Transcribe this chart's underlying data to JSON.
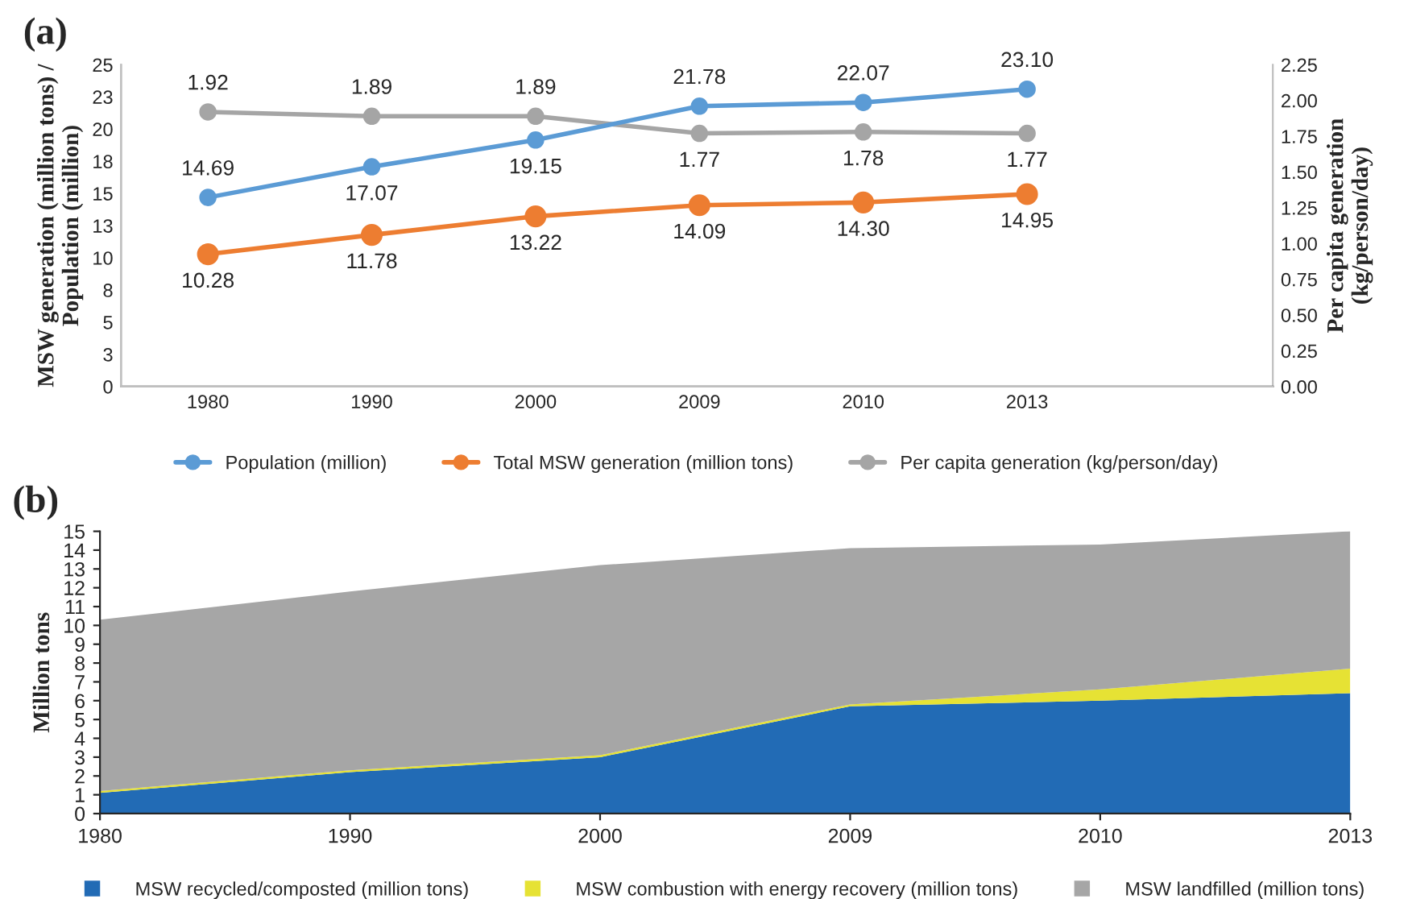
{
  "chart_data": [
    {
      "type": "line",
      "title": "(a)",
      "categories": [
        "1980",
        "1990",
        "2000",
        "2009",
        "2010",
        "2013"
      ],
      "ylabel": "MSW generation (million tons) /\nPopulation (million)",
      "y2label": "Per capita generation\n(kg/person/day)",
      "ylim": [
        0,
        25
      ],
      "yticks": [
        0,
        {
          "value": 2.5,
          "label": "3"
        },
        5,
        {
          "value": 7.5,
          "label": "8"
        },
        10,
        {
          "value": 12.5,
          "label": "13"
        },
        15,
        {
          "value": 17.5,
          "label": "18"
        },
        20,
        {
          "value": 22.5,
          "label": "23"
        },
        25
      ],
      "y2lim": [
        0,
        2.25
      ],
      "y2ticks": [
        {
          "value": 0,
          "label": "0.00"
        },
        {
          "value": 0.25,
          "label": "0.25"
        },
        {
          "value": 0.5,
          "label": "0.50"
        },
        {
          "value": 0.75,
          "label": "0.75"
        },
        {
          "value": 1,
          "label": "1.00"
        },
        {
          "value": 1.25,
          "label": "1.25"
        },
        {
          "value": 1.5,
          "label": "1.50"
        },
        {
          "value": 1.75,
          "label": "1.75"
        },
        {
          "value": 2,
          "label": "2.00"
        },
        {
          "value": 2.25,
          "label": "2.25"
        }
      ],
      "marker": "circle",
      "grid": false,
      "legend": "bottom",
      "series": [
        {
          "name": "Population (million)",
          "color": "#5b9bd5",
          "values": [
            14.69,
            17.07,
            19.15,
            21.78,
            22.07,
            23.1
          ],
          "value_labels": [
            "14.69",
            "17.07",
            "19.15",
            "21.78",
            "22.07",
            "23.10"
          ]
        },
        {
          "name": "Total MSW generation (million tons)",
          "color": "#ed7d31",
          "values": [
            10.28,
            11.78,
            13.22,
            14.09,
            14.3,
            14.95
          ],
          "value_labels": [
            "10.28",
            "11.78",
            "13.22",
            "14.09",
            "14.30",
            "14.95"
          ]
        },
        {
          "name": "Per capita generation (kg/person/day)",
          "color": "#a5a5a5",
          "axis": "y2",
          "values": [
            1.92,
            1.89,
            1.89,
            1.77,
            1.78,
            1.77
          ],
          "value_labels": [
            "1.92",
            "1.89",
            "1.89",
            "1.77",
            "1.78",
            "1.77"
          ]
        }
      ]
    },
    {
      "type": "area",
      "title": "(b)",
      "stacked": true,
      "categories": [
        "1980",
        "1990",
        "2000",
        "2009",
        "2010",
        "2013"
      ],
      "ylabel": "Million tons",
      "ylim": [
        0,
        15
      ],
      "yticks": [
        0,
        1,
        2,
        3,
        4,
        5,
        6,
        7,
        8,
        9,
        10,
        11,
        12,
        13,
        14,
        15
      ],
      "grid": false,
      "legend": "bottom",
      "series": [
        {
          "name": "MSW recycled/composted (million tons)",
          "color": "#226bb5",
          "values": [
            1.1,
            2.2,
            3.0,
            5.7,
            6.0,
            6.4
          ]
        },
        {
          "name": "MSW combustion with energy recovery (million tons)",
          "color": "#e6e234",
          "values": [
            0.1,
            0.1,
            0.1,
            0.1,
            0.6,
            1.3
          ]
        },
        {
          "name": "MSW landfilled (million tons)",
          "color": "#a6a6a6",
          "values": [
            9.1,
            9.5,
            10.1,
            8.3,
            7.7,
            7.3
          ]
        }
      ]
    }
  ]
}
